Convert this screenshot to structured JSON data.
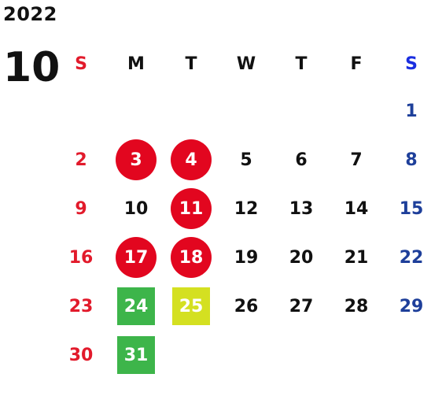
{
  "year": "2022",
  "month": "10",
  "colors": {
    "sunday": "#e21a2b",
    "saturday": "#1e3f9a",
    "holiday_circle": "#e2061f",
    "green_mark": "#3db54a",
    "yellow_mark": "#d4e021"
  },
  "weekdays": [
    "S",
    "M",
    "T",
    "W",
    "T",
    "F",
    "S"
  ],
  "weeks": [
    [
      {
        "day": "",
        "mark": "none"
      },
      {
        "day": "",
        "mark": "none"
      },
      {
        "day": "",
        "mark": "none"
      },
      {
        "day": "",
        "mark": "none"
      },
      {
        "day": "",
        "mark": "none"
      },
      {
        "day": "",
        "mark": "none"
      },
      {
        "day": "1",
        "mark": "none"
      }
    ],
    [
      {
        "day": "2",
        "mark": "none"
      },
      {
        "day": "3",
        "mark": "red-circle"
      },
      {
        "day": "4",
        "mark": "red-circle"
      },
      {
        "day": "5",
        "mark": "none"
      },
      {
        "day": "6",
        "mark": "none"
      },
      {
        "day": "7",
        "mark": "none"
      },
      {
        "day": "8",
        "mark": "none"
      }
    ],
    [
      {
        "day": "9",
        "mark": "none"
      },
      {
        "day": "10",
        "mark": "none"
      },
      {
        "day": "11",
        "mark": "red-circle"
      },
      {
        "day": "12",
        "mark": "none"
      },
      {
        "day": "13",
        "mark": "none"
      },
      {
        "day": "14",
        "mark": "none"
      },
      {
        "day": "15",
        "mark": "none"
      }
    ],
    [
      {
        "day": "16",
        "mark": "none"
      },
      {
        "day": "17",
        "mark": "red-circle"
      },
      {
        "day": "18",
        "mark": "red-circle"
      },
      {
        "day": "19",
        "mark": "none"
      },
      {
        "day": "20",
        "mark": "none"
      },
      {
        "day": "21",
        "mark": "none"
      },
      {
        "day": "22",
        "mark": "none"
      }
    ],
    [
      {
        "day": "23",
        "mark": "none"
      },
      {
        "day": "24",
        "mark": "green-square"
      },
      {
        "day": "25",
        "mark": "yellow-square"
      },
      {
        "day": "26",
        "mark": "none"
      },
      {
        "day": "27",
        "mark": "none"
      },
      {
        "day": "28",
        "mark": "none"
      },
      {
        "day": "29",
        "mark": "none"
      }
    ],
    [
      {
        "day": "30",
        "mark": "none"
      },
      {
        "day": "31",
        "mark": "green-square"
      },
      {
        "day": "",
        "mark": "none"
      },
      {
        "day": "",
        "mark": "none"
      },
      {
        "day": "",
        "mark": "none"
      },
      {
        "day": "",
        "mark": "none"
      },
      {
        "day": "",
        "mark": "none"
      }
    ]
  ]
}
